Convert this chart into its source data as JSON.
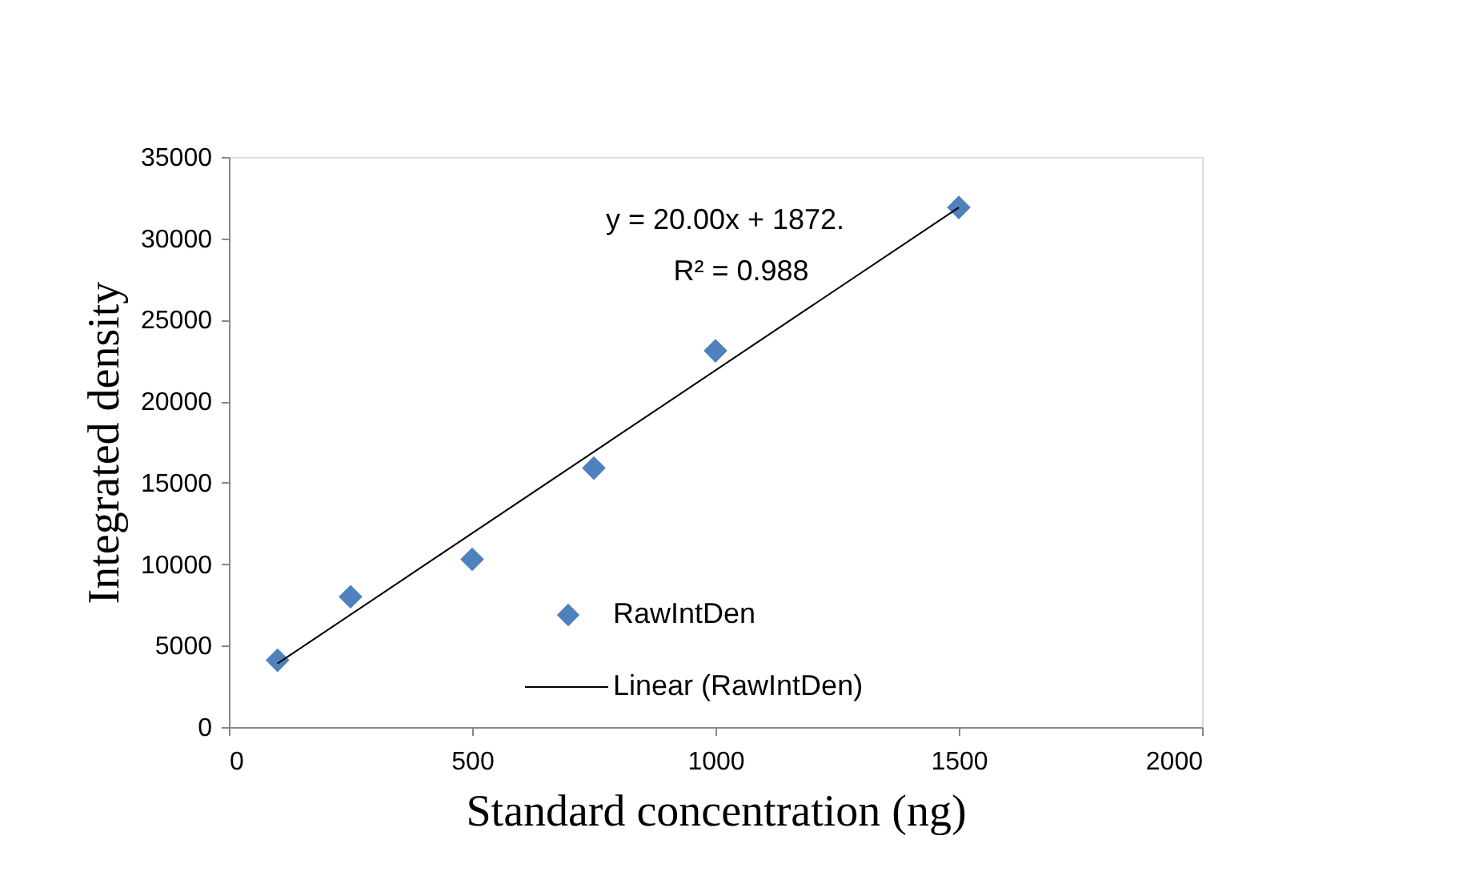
{
  "chart_data": {
    "type": "scatter",
    "xlabel": "Standard concentration (ng)",
    "ylabel": "Integrated density",
    "xlim": [
      0,
      2000
    ],
    "xticks": [
      0,
      500,
      1000,
      1500,
      2000
    ],
    "ylim": [
      0,
      35000
    ],
    "yticks": [
      0,
      5000,
      10000,
      15000,
      20000,
      25000,
      30000,
      35000
    ],
    "grid": false,
    "legend": "bottom",
    "annotations": [
      "y = 20.00x + 1872.",
      "R² = 0.988"
    ],
    "series": [
      {
        "name": "RawIntDen",
        "color": "#4f81bd",
        "marker": "diamond",
        "x": [
          100,
          250,
          500,
          750,
          1000,
          1500
        ],
        "values": [
          4100,
          8000,
          10300,
          15900,
          23100,
          31900
        ]
      },
      {
        "name": "Linear (RawIntDen)",
        "type": "line",
        "color": "#000000",
        "x": [
          100,
          1500
        ],
        "marker": "none",
        "values": [
          3900,
          31900
        ]
      }
    ]
  }
}
